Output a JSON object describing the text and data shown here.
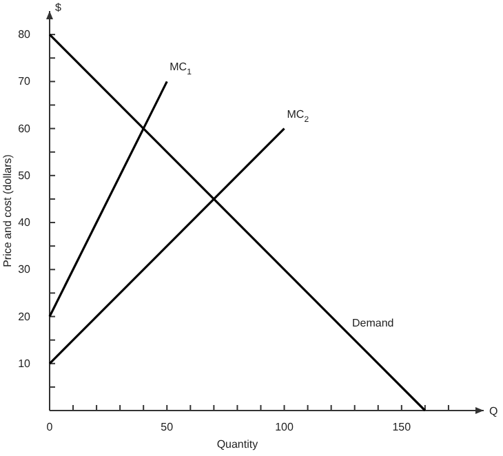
{
  "chart_data": {
    "type": "line",
    "xlabel": "Quantity",
    "ylabel": "Price and cost (dollars)",
    "xlim": [
      0,
      185
    ],
    "ylim": [
      0,
      85
    ],
    "xticks": [
      {
        "value": 0,
        "label": "0"
      },
      {
        "value": 10,
        "label": null
      },
      {
        "value": 20,
        "label": null
      },
      {
        "value": 30,
        "label": null
      },
      {
        "value": 40,
        "label": null
      },
      50,
      {
        "value": 60,
        "label": null
      },
      {
        "value": 70,
        "label": null
      },
      {
        "value": 80,
        "label": null
      },
      {
        "value": 90,
        "label": null
      },
      100,
      {
        "value": 110,
        "label": null
      },
      {
        "value": 120,
        "label": null
      },
      {
        "value": 130,
        "label": null
      },
      {
        "value": 140,
        "label": null
      },
      150,
      {
        "value": 160,
        "label": null
      },
      {
        "value": 170,
        "label": null
      }
    ],
    "yticks": [
      {
        "value": 5,
        "label": null
      },
      10,
      {
        "value": 15,
        "label": null
      },
      20,
      {
        "value": 25,
        "label": null
      },
      30,
      {
        "value": 35,
        "label": null
      },
      40,
      {
        "value": 45,
        "label": null
      },
      50,
      {
        "value": 55,
        "label": null
      },
      60,
      {
        "value": 65,
        "label": null
      },
      70,
      {
        "value": 75,
        "label": null
      },
      80
    ],
    "series": [
      {
        "name": "Demand",
        "color": "#000000",
        "x": [
          0,
          160
        ],
        "values": [
          80,
          0
        ]
      },
      {
        "name": "MC$_{1}$",
        "color": "#000000",
        "x": [
          0,
          50
        ],
        "values": [
          20,
          70
        ]
      },
      {
        "name": "MC$_{2}$",
        "color": "#000000",
        "x": [
          0,
          100
        ],
        "values": [
          10,
          60
        ]
      }
    ],
    "annotations": [
      "$",
      "Q"
    ],
    "grid": false,
    "marker": "none",
    "line_style": "solid"
  }
}
